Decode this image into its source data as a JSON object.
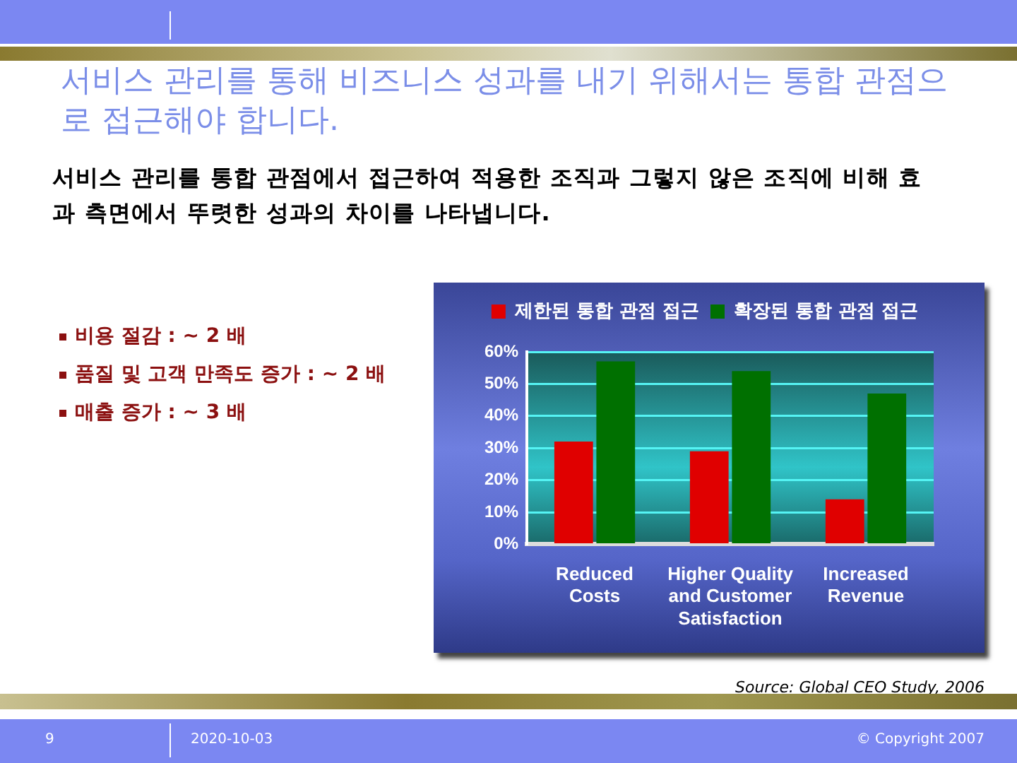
{
  "chart_data": {
    "type": "bar",
    "title": "서비스 관리를 통해 비즈니스 성과를 내기 위해서는 통합 관점으로 접근해야 합니다.",
    "subtitle": "서비스 관리를 통합 관점에서 접근하여 적용한 조직과 그렇지 않은 조직에 비해 효과 측면에서 뚜렷한 성과의 차이를 나타냅니다.",
    "categories": [
      "Reduced Costs",
      "Higher Quality and Customer Satisfaction",
      "Increased Revenue"
    ],
    "series": [
      {
        "name": "제한된 통합 관점 접근",
        "color": "#e00000",
        "values": [
          32,
          29,
          14
        ]
      },
      {
        "name": "확장된 통합 관점 접근",
        "color": "#007000",
        "values": [
          57,
          54,
          47
        ]
      }
    ],
    "ylim": [
      0,
      60
    ],
    "yticks": [
      {
        "value": 0,
        "label": "0%"
      },
      {
        "value": 10,
        "label": "10%"
      },
      {
        "value": 20,
        "label": "20%"
      },
      {
        "value": 30,
        "label": "30%"
      },
      {
        "value": 40,
        "label": "40%"
      },
      {
        "value": 50,
        "label": "50%"
      },
      {
        "value": 60,
        "label": "60%"
      }
    ],
    "grid": "y",
    "legend": "top",
    "annotations": [
      "비용 절감 : ~ 2 배",
      "품질 및 고객 만족도 증가 : ~ 2 배",
      "매출 증가 : ~ 3 배",
      "Source: Global CEO Study, 2006",
      "9",
      "2020-10-03",
      "© Copyright 2007"
    ]
  }
}
